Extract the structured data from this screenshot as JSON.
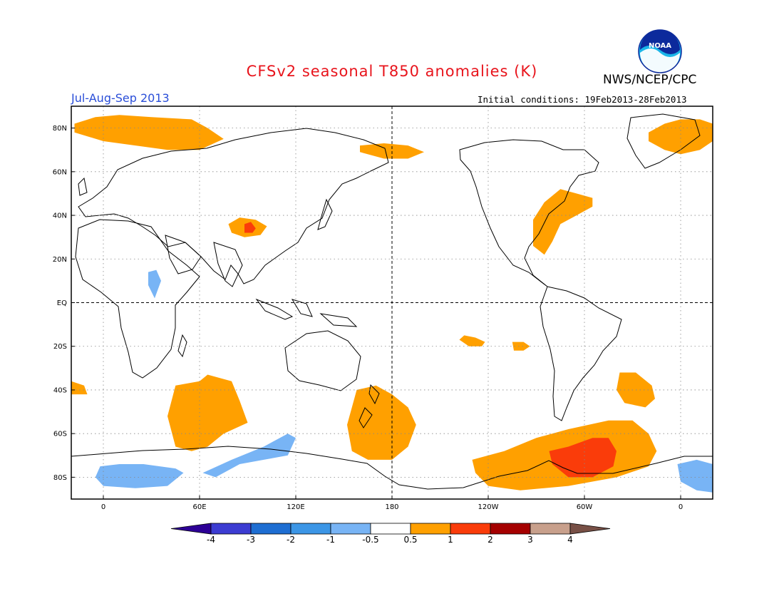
{
  "title": "CFSv2 seasonal T850 anomalies (K)",
  "season": "Jul-Aug-Sep 2013",
  "agency": "NWS/NCEP/CPC",
  "initial_conditions": "Initial conditions: 19Feb2013-28Feb2013",
  "logo_text": "NOAA",
  "icons": {
    "logo": "noaa-logo-icon"
  },
  "colors": {
    "title": "#e8141c",
    "season": "#2a4ed8",
    "warm_05_1": "#ffa000",
    "warm_1_2": "#fa3c0a",
    "cold_05_1": "#78b4f5"
  },
  "map": {
    "lat_labels": [
      "80N",
      "60N",
      "40N",
      "20N",
      "EQ",
      "20S",
      "40S",
      "60S",
      "80S"
    ],
    "lat_values": [
      80,
      60,
      40,
      20,
      0,
      -20,
      -40,
      -60,
      -80
    ],
    "lon_labels": [
      "0",
      "60E",
      "120E",
      "180",
      "120W",
      "60W",
      "0"
    ],
    "lon_values": [
      0,
      60,
      120,
      180,
      240,
      300,
      360
    ],
    "lon_range": [
      -20,
      380
    ],
    "lat_range": [
      -90,
      90
    ],
    "grid": "dotted",
    "dashed_lines": [
      "EQ",
      "180"
    ]
  },
  "colorbar": {
    "labels": [
      "-4",
      "-3",
      "-2",
      "-1",
      "-0.5",
      "0.5",
      "1",
      "2",
      "3",
      "4"
    ],
    "colors": [
      "#2d0096",
      "#3c3cd2",
      "#1e6ed2",
      "#3c96e6",
      "#78b4f5",
      "#ffffff",
      "#ffa000",
      "#fa3c0a",
      "#a50000",
      "#c8a08c",
      "#785046"
    ]
  },
  "regions": [
    {
      "name": "warm-siberia-west",
      "level": "warm1",
      "lon": [
        -18,
        -5,
        10,
        30,
        55,
        65,
        75,
        60,
        40,
        20,
        0,
        -18
      ],
      "lat": [
        82,
        85,
        86,
        85,
        84,
        80,
        75,
        70,
        70,
        72,
        74,
        78
      ]
    },
    {
      "name": "warm-arctic-canada",
      "level": "warm1",
      "lon": [
        160,
        175,
        190,
        200,
        190,
        175,
        160
      ],
      "lat": [
        72,
        73,
        72,
        69,
        66,
        66,
        69
      ]
    },
    {
      "name": "warm-greenland",
      "level": "warm1",
      "lon": [
        340,
        350,
        360,
        372,
        380,
        380,
        372,
        360,
        350,
        340
      ],
      "lat": [
        78,
        82,
        84,
        84,
        82,
        74,
        70,
        68,
        70,
        74
      ]
    },
    {
      "name": "warm-tibet",
      "level": "warm1",
      "lon": [
        78,
        85,
        95,
        102,
        98,
        88,
        80,
        78
      ],
      "lat": [
        36,
        39,
        38,
        35,
        31,
        30,
        32,
        36
      ]
    },
    {
      "name": "warm-tibet-core",
      "level": "warm2",
      "lon": [
        88,
        92,
        95,
        93,
        88,
        88
      ],
      "lat": [
        36,
        37,
        34,
        32,
        32,
        36
      ]
    },
    {
      "name": "warm-north-america",
      "level": "warm1",
      "lon": [
        268,
        275,
        285,
        295,
        305,
        305,
        295,
        285,
        280,
        275,
        268,
        268
      ],
      "lat": [
        38,
        46,
        52,
        50,
        48,
        44,
        40,
        36,
        28,
        22,
        26,
        32
      ]
    },
    {
      "name": "warm-mid-pacific",
      "level": "warm1",
      "lon": [
        225,
        232,
        238,
        236,
        228,
        222,
        225
      ],
      "lat": [
        -15,
        -16,
        -18,
        -20,
        -20,
        -17,
        -15
      ]
    },
    {
      "name": "warm-east-pacific",
      "level": "warm1",
      "lon": [
        255,
        262,
        266,
        262,
        256,
        255
      ],
      "lat": [
        -18,
        -18,
        -20,
        -22,
        -22,
        -18
      ]
    },
    {
      "name": "warm-sw-atlantic",
      "level": "warm1",
      "lon": [
        322,
        332,
        342,
        344,
        338,
        325,
        320,
        322
      ],
      "lat": [
        -32,
        -32,
        -38,
        -44,
        -48,
        -46,
        -40,
        -32
      ]
    },
    {
      "name": "warm-indian-ocean",
      "level": "warm1",
      "lon": [
        45,
        60,
        65,
        80,
        85,
        90,
        75,
        65,
        55,
        45,
        40,
        45
      ],
      "lat": [
        -38,
        -36,
        -33,
        -36,
        -45,
        -55,
        -60,
        -66,
        -68,
        -66,
        -52,
        -38
      ]
    },
    {
      "name": "warm-sw-pacific",
      "level": "warm1",
      "lon": [
        158,
        170,
        180,
        190,
        195,
        190,
        180,
        165,
        155,
        152,
        158
      ],
      "lat": [
        -40,
        -38,
        -42,
        -48,
        -56,
        -66,
        -72,
        -72,
        -68,
        -56,
        -40
      ]
    },
    {
      "name": "warm-south-pacific",
      "level": "warm1",
      "lon": [
        230,
        250,
        270,
        290,
        315,
        330,
        340,
        345,
        340,
        320,
        290,
        260,
        240,
        232,
        230
      ],
      "lat": [
        -72,
        -68,
        -62,
        -58,
        -54,
        -54,
        -60,
        -68,
        -75,
        -80,
        -84,
        -86,
        -84,
        -78,
        -72
      ]
    },
    {
      "name": "warm-drake-passage",
      "level": "warm2",
      "lon": [
        278,
        290,
        305,
        315,
        320,
        318,
        305,
        290,
        280,
        278
      ],
      "lat": [
        -68,
        -66,
        -62,
        -62,
        -68,
        -75,
        -80,
        -80,
        -74,
        -68
      ]
    },
    {
      "name": "warm-west-atlantic-south",
      "level": "warm1",
      "lon": [
        -20,
        -12,
        -10,
        -20
      ],
      "lat": [
        -36,
        -38,
        -42,
        -42
      ]
    },
    {
      "name": "cold-africa",
      "level": "cold1",
      "lon": [
        28,
        33,
        36,
        32,
        28,
        28
      ],
      "lat": [
        14,
        15,
        10,
        2,
        8,
        14
      ]
    },
    {
      "name": "cold-south-indian",
      "level": "cold1",
      "lon": [
        -2,
        10,
        25,
        45,
        50,
        40,
        20,
        0,
        -5,
        -2
      ],
      "lat": [
        -75,
        -74,
        -74,
        -76,
        -78,
        -84,
        -85,
        -84,
        -80,
        -75
      ]
    },
    {
      "name": "cold-east-antarctica",
      "level": "cold1",
      "lon": [
        62,
        80,
        100,
        115,
        120,
        115,
        100,
        85,
        70,
        62
      ],
      "lat": [
        -78,
        -72,
        -66,
        -60,
        -62,
        -70,
        -72,
        -74,
        -80,
        -78
      ]
    },
    {
      "name": "cold-weddell",
      "level": "cold1",
      "lon": [
        358,
        370,
        380,
        380,
        370,
        360,
        358
      ],
      "lat": [
        -74,
        -72,
        -74,
        -87,
        -86,
        -82,
        -74
      ]
    }
  ]
}
